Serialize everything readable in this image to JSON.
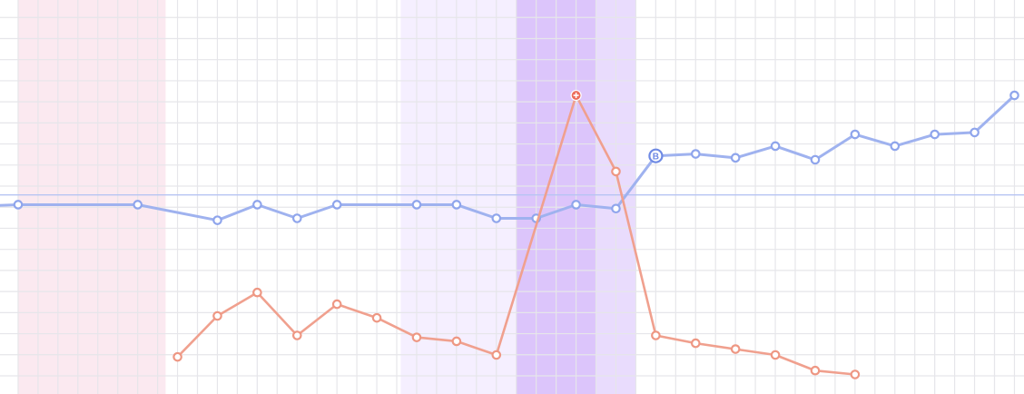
{
  "chart_data": {
    "type": "line",
    "title": "",
    "xlabel": "",
    "ylabel": "",
    "x_range": [
      0,
      25.5
    ],
    "y_range": [
      0,
      20
    ],
    "grid": true,
    "reference_line_y": 10.2,
    "bands": [
      {
        "x_start": 0,
        "x_end": 3.7,
        "color": "#fbe9f0"
      },
      {
        "x_start": 9.6,
        "x_end": 12.5,
        "color": "#f5efff"
      },
      {
        "x_start": 12.5,
        "x_end": 14.5,
        "color": "#dcc5fb"
      },
      {
        "x_start": 14.5,
        "x_end": 15.5,
        "color": "#e9dcfd"
      }
    ],
    "series": [
      {
        "color": "#9fb2ef",
        "x": [
          0,
          3,
          5,
          6,
          7,
          8,
          10,
          11,
          12,
          13,
          14,
          15,
          16,
          17,
          18,
          19,
          20,
          21,
          22,
          23,
          24,
          25
        ],
        "y": [
          9.7,
          9.7,
          8.9,
          9.7,
          9.0,
          9.7,
          9.7,
          9.7,
          9.0,
          9.0,
          9.7,
          9.5,
          12.2,
          12.3,
          12.1,
          12.7,
          12.0,
          13.3,
          12.7,
          13.3,
          13.4,
          15.3
        ],
        "markers": [
          {
            "x": 16,
            "y": 12.2,
            "label": "B"
          }
        ]
      },
      {
        "color": "#f0a08e",
        "x": [
          4,
          5,
          6,
          7,
          8,
          9,
          10,
          11,
          12,
          14,
          15,
          16,
          17,
          18,
          19,
          20,
          21
        ],
        "y": [
          1.9,
          4.0,
          5.2,
          3.0,
          4.6,
          3.9,
          2.9,
          2.7,
          2.0,
          15.3,
          11.4,
          3.0,
          2.6,
          2.3,
          2.0,
          1.2,
          1.0
        ],
        "markers": [
          {
            "x": 14,
            "y": 15.3,
            "label": "+"
          }
        ]
      }
    ]
  }
}
